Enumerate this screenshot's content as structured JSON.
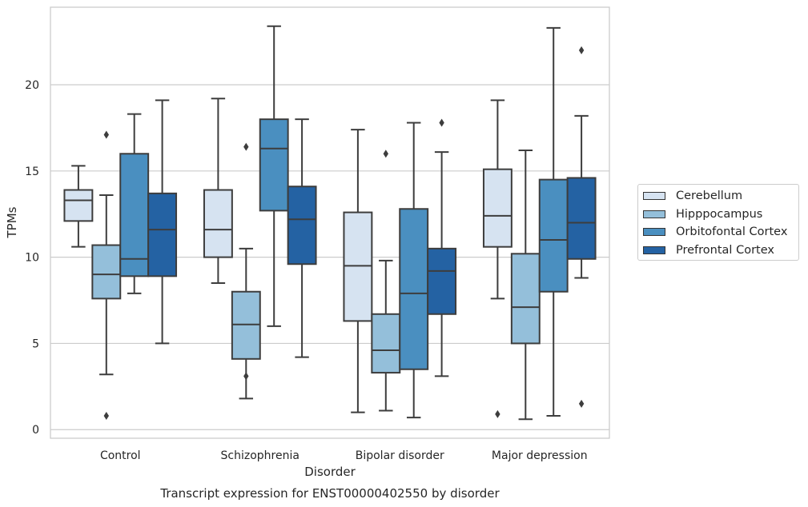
{
  "chart_data": {
    "type": "box",
    "title": "Transcript expression for ENST00000402550 by disorder",
    "xlabel": "Disorder",
    "ylabel": "TPMs",
    "ylim": [
      -0.5,
      24.5
    ],
    "yticks": [
      0,
      5,
      10,
      15,
      20
    ],
    "grid": true,
    "legend_position": "right",
    "categories": [
      "Control",
      "Schizophrenia",
      "Bipolar disorder",
      "Major depression"
    ],
    "series": [
      {
        "name": "Cerebellum",
        "color": "#d6e3f1",
        "boxes": [
          {
            "whislo": 10.6,
            "q1": 12.1,
            "med": 13.3,
            "q3": 13.9,
            "whishi": 15.3,
            "fliers": []
          },
          {
            "whislo": 8.5,
            "q1": 10.0,
            "med": 11.6,
            "q3": 13.9,
            "whishi": 19.2,
            "fliers": []
          },
          {
            "whislo": 1.0,
            "q1": 6.3,
            "med": 9.5,
            "q3": 12.6,
            "whishi": 17.4,
            "fliers": []
          },
          {
            "whislo": 7.6,
            "q1": 10.6,
            "med": 12.4,
            "q3": 15.1,
            "whishi": 19.1,
            "fliers": [
              0.9
            ]
          }
        ]
      },
      {
        "name": "Hipppocampus",
        "color": "#94bfda",
        "boxes": [
          {
            "whislo": 3.2,
            "q1": 7.6,
            "med": 9.0,
            "q3": 10.7,
            "whishi": 13.6,
            "fliers": [
              17.1,
              0.8
            ]
          },
          {
            "whislo": 1.8,
            "q1": 4.1,
            "med": 6.1,
            "q3": 8.0,
            "whishi": 10.5,
            "fliers": [
              16.4,
              3.1
            ]
          },
          {
            "whislo": 1.1,
            "q1": 3.3,
            "med": 4.6,
            "q3": 6.7,
            "whishi": 9.8,
            "fliers": [
              16.0
            ]
          },
          {
            "whislo": 0.6,
            "q1": 5.0,
            "med": 7.1,
            "q3": 10.2,
            "whishi": 16.2,
            "fliers": []
          }
        ]
      },
      {
        "name": "Orbitofontal Cortex",
        "color": "#4a8fc0",
        "boxes": [
          {
            "whislo": 7.9,
            "q1": 8.9,
            "med": 9.9,
            "q3": 16.0,
            "whishi": 18.3,
            "fliers": []
          },
          {
            "whislo": 6.0,
            "q1": 12.7,
            "med": 16.3,
            "q3": 18.0,
            "whishi": 23.4,
            "fliers": []
          },
          {
            "whislo": 0.7,
            "q1": 3.5,
            "med": 7.9,
            "q3": 12.8,
            "whishi": 17.8,
            "fliers": []
          },
          {
            "whislo": 0.8,
            "q1": 8.0,
            "med": 11.0,
            "q3": 14.5,
            "whishi": 23.3,
            "fliers": []
          }
        ]
      },
      {
        "name": "Prefrontal Cortex",
        "color": "#2462a3",
        "boxes": [
          {
            "whislo": 5.0,
            "q1": 8.9,
            "med": 11.6,
            "q3": 13.7,
            "whishi": 19.1,
            "fliers": []
          },
          {
            "whislo": 4.2,
            "q1": 9.6,
            "med": 12.2,
            "q3": 14.1,
            "whishi": 18.0,
            "fliers": []
          },
          {
            "whislo": 3.1,
            "q1": 6.7,
            "med": 9.2,
            "q3": 10.5,
            "whishi": 16.1,
            "fliers": [
              17.8
            ]
          },
          {
            "whislo": 8.8,
            "q1": 9.9,
            "med": 12.0,
            "q3": 14.6,
            "whishi": 18.2,
            "fliers": [
              22.0,
              1.5
            ]
          }
        ]
      }
    ]
  }
}
